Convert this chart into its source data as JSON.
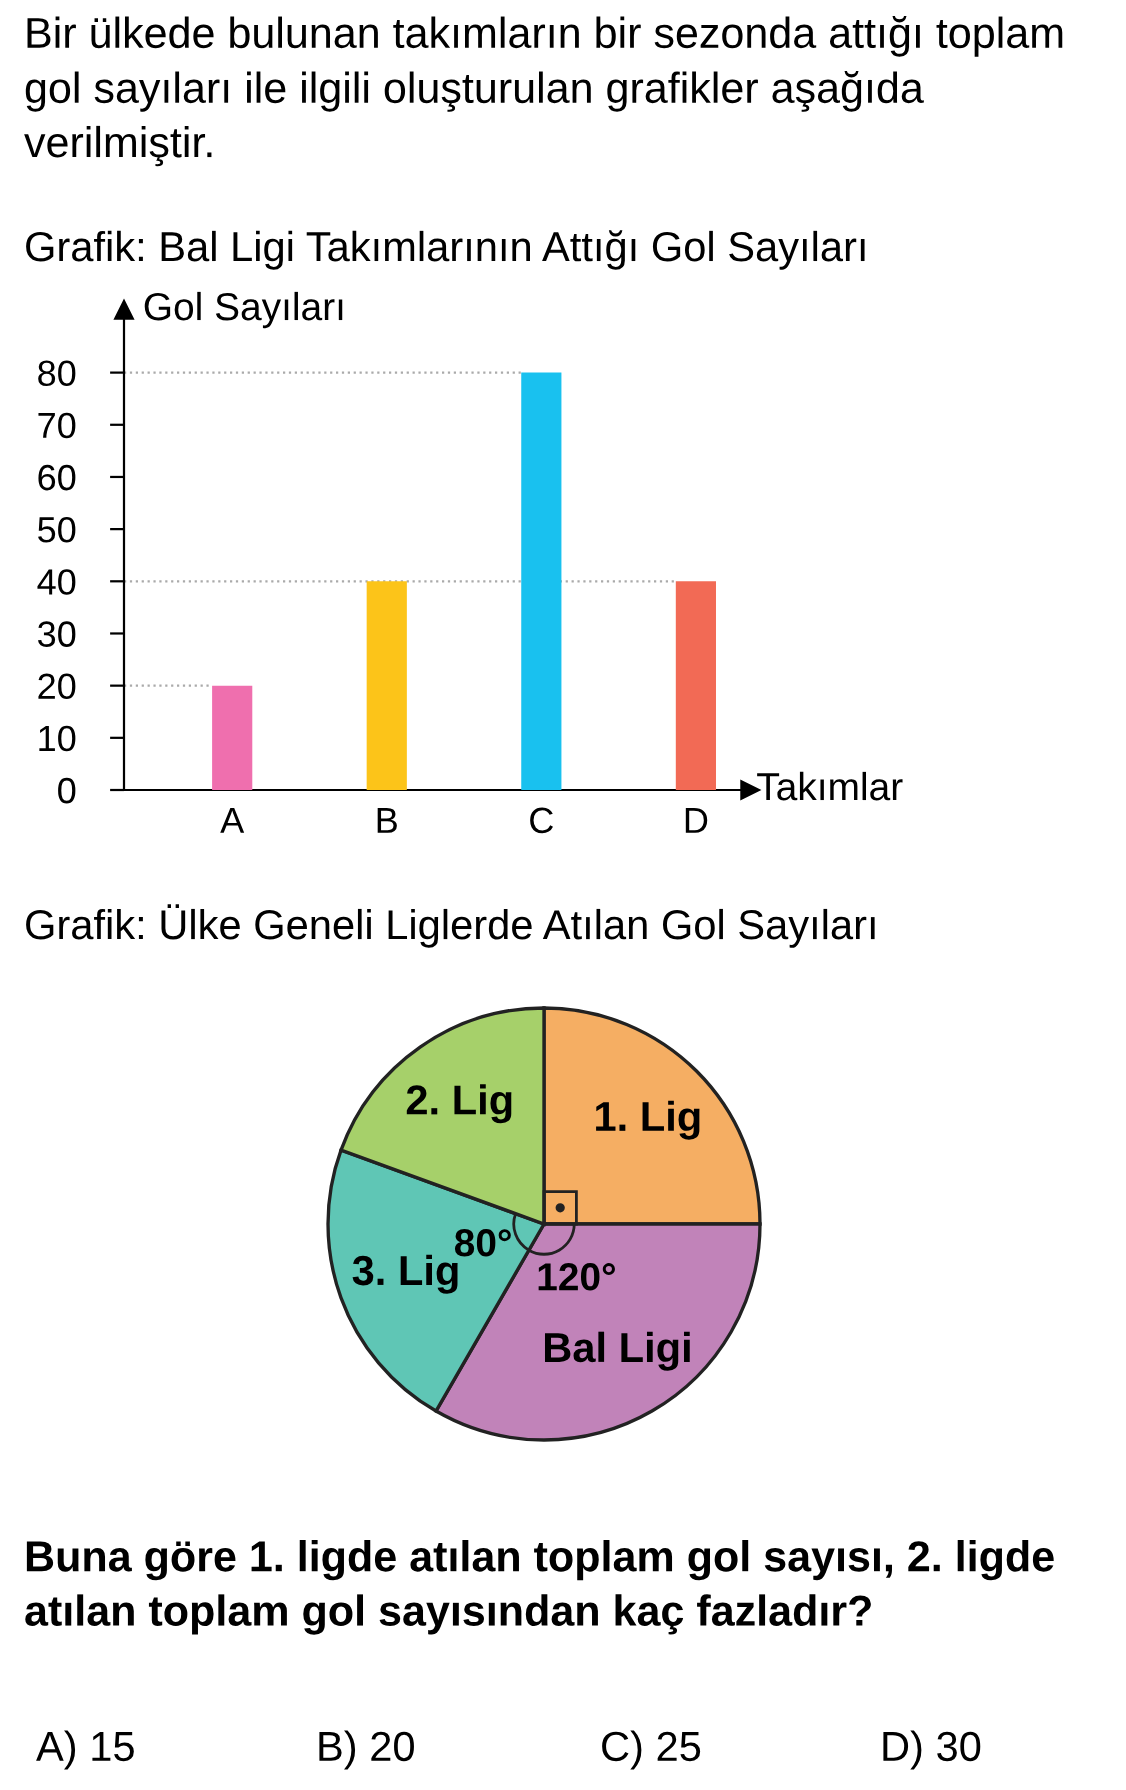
{
  "chart_data": [
    {
      "type": "bar",
      "title": "Grafik: Bal Ligi Takımlarının Attığı Gol Sayıları",
      "ylabel": "Gol Sayıları",
      "xlabel": "Takımlar",
      "annotations": [
        "Bir ülkede bulunan takımların bir sezonda attığı toplam gol sayıları ile ilgili oluşturulan grafikler aşağıda verilmiştir."
      ],
      "categories": [
        "A",
        "B",
        "C",
        "D"
      ],
      "values": [
        20,
        40,
        80,
        40
      ],
      "colors": [
        "#ef6fae",
        "#fcc419",
        "#19c1ef",
        "#f26a55"
      ],
      "ylim": [
        0,
        92
      ],
      "yticks": [
        0,
        10,
        20,
        30,
        40,
        50,
        60,
        70,
        80
      ],
      "grid": false,
      "ref_lines": [
        {
          "axis": "y",
          "value": 20,
          "color": "#aaaaaa",
          "line_style": "dotted"
        },
        {
          "axis": "y",
          "value": 40,
          "color": "#aaaaaa",
          "line_style": "dotted"
        },
        {
          "axis": "y",
          "value": 80,
          "color": "#aaaaaa",
          "line_style": "dotted"
        }
      ]
    },
    {
      "type": "pie",
      "title": "Grafik: Ülke Geneli Liglerde Atılan Gol Sayıları",
      "categories": [
        "1. Lig",
        "Bal Ligi",
        "3. Lig",
        "2. Lig"
      ],
      "values": [
        90,
        120,
        80,
        70
      ],
      "colors": [
        "#f5ae63",
        "#c183b9",
        "#5fc6b5",
        "#a6d06a"
      ],
      "value_labels": [
        null,
        "120°",
        "80°",
        null
      ],
      "annotations": [
        "Buna göre 1. ligde atılan toplam gol sayısı, 2. ligde atılan toplam gol sayısından kaç fazladır?",
        "A) 15",
        "B) 20",
        "C) 25",
        "D) 30"
      ]
    }
  ]
}
